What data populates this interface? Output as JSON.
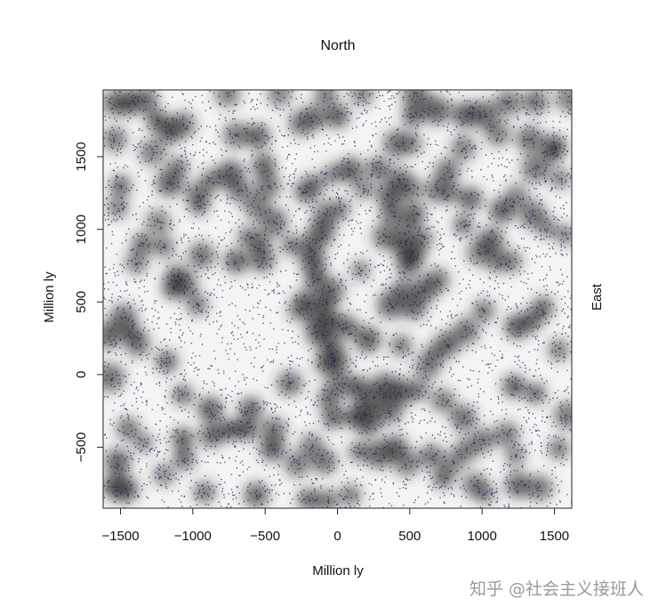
{
  "chart_data": {
    "type": "heatmap",
    "title": "North",
    "xlabel": "Million ly",
    "ylabel": "Million ly",
    "right_label": "East",
    "xlim": [
      -1620,
      1620
    ],
    "ylim": [
      -920,
      1960
    ],
    "xticks": [
      -1500,
      -1000,
      -500,
      0,
      500,
      1000,
      1500
    ],
    "yticks": [
      -500,
      0,
      500,
      1000,
      1500
    ],
    "grid": false,
    "colors": {
      "background": "#f4f4f4",
      "cluster": "#2a2a2a",
      "points": "#1a1a5e"
    },
    "clusters": [
      {
        "x": -1550,
        "y": 1870
      },
      {
        "x": -1450,
        "y": 1870
      },
      {
        "x": -1330,
        "y": 1890
      },
      {
        "x": -1250,
        "y": 1750
      },
      {
        "x": -1160,
        "y": 1680
      },
      {
        "x": -1070,
        "y": 1720
      },
      {
        "x": -1280,
        "y": 1530
      },
      {
        "x": -1540,
        "y": 1620
      },
      {
        "x": -1500,
        "y": 1300
      },
      {
        "x": -1160,
        "y": 1320
      },
      {
        "x": -1100,
        "y": 1430
      },
      {
        "x": -960,
        "y": 1240
      },
      {
        "x": -870,
        "y": 1340
      },
      {
        "x": -740,
        "y": 1380
      },
      {
        "x": -680,
        "y": 1270
      },
      {
        "x": -560,
        "y": 1160
      },
      {
        "x": -620,
        "y": 950
      },
      {
        "x": -540,
        "y": 900
      },
      {
        "x": -440,
        "y": 1050
      },
      {
        "x": -480,
        "y": 1300
      },
      {
        "x": -510,
        "y": 1440
      },
      {
        "x": -700,
        "y": 1650
      },
      {
        "x": -550,
        "y": 1640
      },
      {
        "x": -760,
        "y": 1930
      },
      {
        "x": -400,
        "y": 1930
      },
      {
        "x": -250,
        "y": 1730
      },
      {
        "x": -160,
        "y": 1770
      },
      {
        "x": -80,
        "y": 1930
      },
      {
        "x": 0,
        "y": 1780
      },
      {
        "x": 170,
        "y": 1930
      },
      {
        "x": -1520,
        "y": 1150
      },
      {
        "x": -1240,
        "y": 1050
      },
      {
        "x": -1200,
        "y": 880
      },
      {
        "x": -1390,
        "y": 770
      },
      {
        "x": -940,
        "y": 820
      },
      {
        "x": -700,
        "y": 780
      },
      {
        "x": -520,
        "y": 790
      },
      {
        "x": -320,
        "y": 890
      },
      {
        "x": -1110,
        "y": 680
      },
      {
        "x": -1050,
        "y": 620
      },
      {
        "x": -1130,
        "y": 600
      },
      {
        "x": -970,
        "y": 480
      },
      {
        "x": -1480,
        "y": 390
      },
      {
        "x": -1420,
        "y": 280
      },
      {
        "x": -1380,
        "y": 210
      },
      {
        "x": -1580,
        "y": 270
      },
      {
        "x": -1180,
        "y": 90
      },
      {
        "x": -1570,
        "y": -20
      },
      {
        "x": -1070,
        "y": -140
      },
      {
        "x": -880,
        "y": -240
      },
      {
        "x": -600,
        "y": -240
      },
      {
        "x": -620,
        "y": -380
      },
      {
        "x": -700,
        "y": -380
      },
      {
        "x": -870,
        "y": -420
      },
      {
        "x": -1070,
        "y": -440
      },
      {
        "x": -1060,
        "y": -580
      },
      {
        "x": -1450,
        "y": -370
      },
      {
        "x": -1340,
        "y": -470
      },
      {
        "x": -1520,
        "y": -600
      },
      {
        "x": -1470,
        "y": -790
      },
      {
        "x": -1540,
        "y": -770
      },
      {
        "x": -1200,
        "y": -690
      },
      {
        "x": -920,
        "y": -810
      },
      {
        "x": -560,
        "y": -830
      },
      {
        "x": -330,
        "y": -60
      },
      {
        "x": -450,
        "y": -510
      },
      {
        "x": -280,
        "y": -620
      },
      {
        "x": -180,
        "y": -490
      },
      {
        "x": -90,
        "y": -600
      },
      {
        "x": -200,
        "y": -860
      },
      {
        "x": -70,
        "y": -870
      },
      {
        "x": 90,
        "y": -830
      },
      {
        "x": 150,
        "y": -530
      },
      {
        "x": 290,
        "y": -550
      },
      {
        "x": 400,
        "y": -500
      },
      {
        "x": 480,
        "y": -610
      },
      {
        "x": 650,
        "y": -560
      },
      {
        "x": 730,
        "y": -710
      },
      {
        "x": 800,
        "y": -610
      },
      {
        "x": 950,
        "y": -760
      },
      {
        "x": 1020,
        "y": -820
      },
      {
        "x": 1230,
        "y": -560
      },
      {
        "x": 1250,
        "y": -760
      },
      {
        "x": 1400,
        "y": -780
      },
      {
        "x": 1530,
        "y": -510
      },
      {
        "x": 1590,
        "y": -280
      },
      {
        "x": 1370,
        "y": -130
      },
      {
        "x": 1220,
        "y": -80
      },
      {
        "x": 1530,
        "y": 170
      },
      {
        "x": 1240,
        "y": 330
      },
      {
        "x": 1340,
        "y": 370
      },
      {
        "x": 1420,
        "y": 460
      },
      {
        "x": 1010,
        "y": 440
      },
      {
        "x": 890,
        "y": 300
      },
      {
        "x": 760,
        "y": 210
      },
      {
        "x": 670,
        "y": 140
      },
      {
        "x": 620,
        "y": 50
      },
      {
        "x": 560,
        "y": -110
      },
      {
        "x": 730,
        "y": -180
      },
      {
        "x": 870,
        "y": -300
      },
      {
        "x": 890,
        "y": -520
      },
      {
        "x": 1010,
        "y": -450
      },
      {
        "x": 1170,
        "y": -410
      },
      {
        "x": 430,
        "y": -120
      },
      {
        "x": 320,
        "y": -70
      },
      {
        "x": 260,
        "y": -160
      },
      {
        "x": 180,
        "y": -220
      },
      {
        "x": 140,
        "y": -90
      },
      {
        "x": 10,
        "y": -60
      },
      {
        "x": -60,
        "y": -170
      },
      {
        "x": -30,
        "y": -300
      },
      {
        "x": 120,
        "y": -290
      },
      {
        "x": 210,
        "y": -330
      },
      {
        "x": 360,
        "y": -250
      },
      {
        "x": -10,
        "y": 100
      },
      {
        "x": -80,
        "y": 80
      },
      {
        "x": -50,
        "y": 210
      },
      {
        "x": -140,
        "y": 280
      },
      {
        "x": -120,
        "y": 360
      },
      {
        "x": -30,
        "y": 370
      },
      {
        "x": 70,
        "y": 330
      },
      {
        "x": 210,
        "y": 240
      },
      {
        "x": -220,
        "y": 500
      },
      {
        "x": -270,
        "y": 440
      },
      {
        "x": -80,
        "y": 500
      },
      {
        "x": -40,
        "y": 580
      },
      {
        "x": -150,
        "y": 660
      },
      {
        "x": -170,
        "y": 780
      },
      {
        "x": -190,
        "y": 880
      },
      {
        "x": -110,
        "y": 980
      },
      {
        "x": -80,
        "y": 1100
      },
      {
        "x": 20,
        "y": 1140
      },
      {
        "x": -160,
        "y": 1310
      },
      {
        "x": -220,
        "y": 1260
      },
      {
        "x": -30,
        "y": 1380
      },
      {
        "x": 90,
        "y": 1410
      },
      {
        "x": 180,
        "y": 1280
      },
      {
        "x": 280,
        "y": 1420
      },
      {
        "x": 350,
        "y": 1240
      },
      {
        "x": 420,
        "y": 1350
      },
      {
        "x": 490,
        "y": 1280
      },
      {
        "x": 380,
        "y": 1120
      },
      {
        "x": 490,
        "y": 1030
      },
      {
        "x": 440,
        "y": 910
      },
      {
        "x": 330,
        "y": 950
      },
      {
        "x": 540,
        "y": 1110
      },
      {
        "x": 520,
        "y": 840
      },
      {
        "x": 590,
        "y": 940
      },
      {
        "x": 490,
        "y": 770
      },
      {
        "x": 450,
        "y": 580
      },
      {
        "x": 370,
        "y": 480
      },
      {
        "x": 530,
        "y": 460
      },
      {
        "x": 690,
        "y": 650
      },
      {
        "x": 600,
        "y": 580
      },
      {
        "x": 440,
        "y": 200
      },
      {
        "x": 160,
        "y": 720
      },
      {
        "x": 410,
        "y": 1590
      },
      {
        "x": 510,
        "y": 1590
      },
      {
        "x": 520,
        "y": 1780
      },
      {
        "x": 540,
        "y": 1920
      },
      {
        "x": 680,
        "y": 1820
      },
      {
        "x": 880,
        "y": 1790
      },
      {
        "x": 1010,
        "y": 1790
      },
      {
        "x": 1110,
        "y": 1660
      },
      {
        "x": 1180,
        "y": 1870
      },
      {
        "x": 1370,
        "y": 1880
      },
      {
        "x": 1330,
        "y": 1620
      },
      {
        "x": 1490,
        "y": 1530
      },
      {
        "x": 1540,
        "y": 1350
      },
      {
        "x": 1370,
        "y": 1420
      },
      {
        "x": 1240,
        "y": 1230
      },
      {
        "x": 1350,
        "y": 1100
      },
      {
        "x": 1140,
        "y": 1130
      },
      {
        "x": 1060,
        "y": 920
      },
      {
        "x": 1100,
        "y": 780
      },
      {
        "x": 980,
        "y": 840
      },
      {
        "x": 870,
        "y": 1030
      },
      {
        "x": 920,
        "y": 1210
      },
      {
        "x": 690,
        "y": 1270
      },
      {
        "x": 780,
        "y": 1250
      },
      {
        "x": 760,
        "y": 1400
      },
      {
        "x": 870,
        "y": 1560
      },
      {
        "x": 1200,
        "y": 780
      },
      {
        "x": 1450,
        "y": 1010
      },
      {
        "x": 1580,
        "y": 960
      },
      {
        "x": 1600,
        "y": 1900
      },
      {
        "x": 1500,
        "y": 1570
      },
      {
        "x": -760,
        "y": -380
      },
      {
        "x": -440,
        "y": -380
      },
      {
        "x": -960,
        "y": 1160
      },
      {
        "x": -1350,
        "y": 900
      }
    ]
  },
  "watermark": "知乎 @社会主义接班人"
}
